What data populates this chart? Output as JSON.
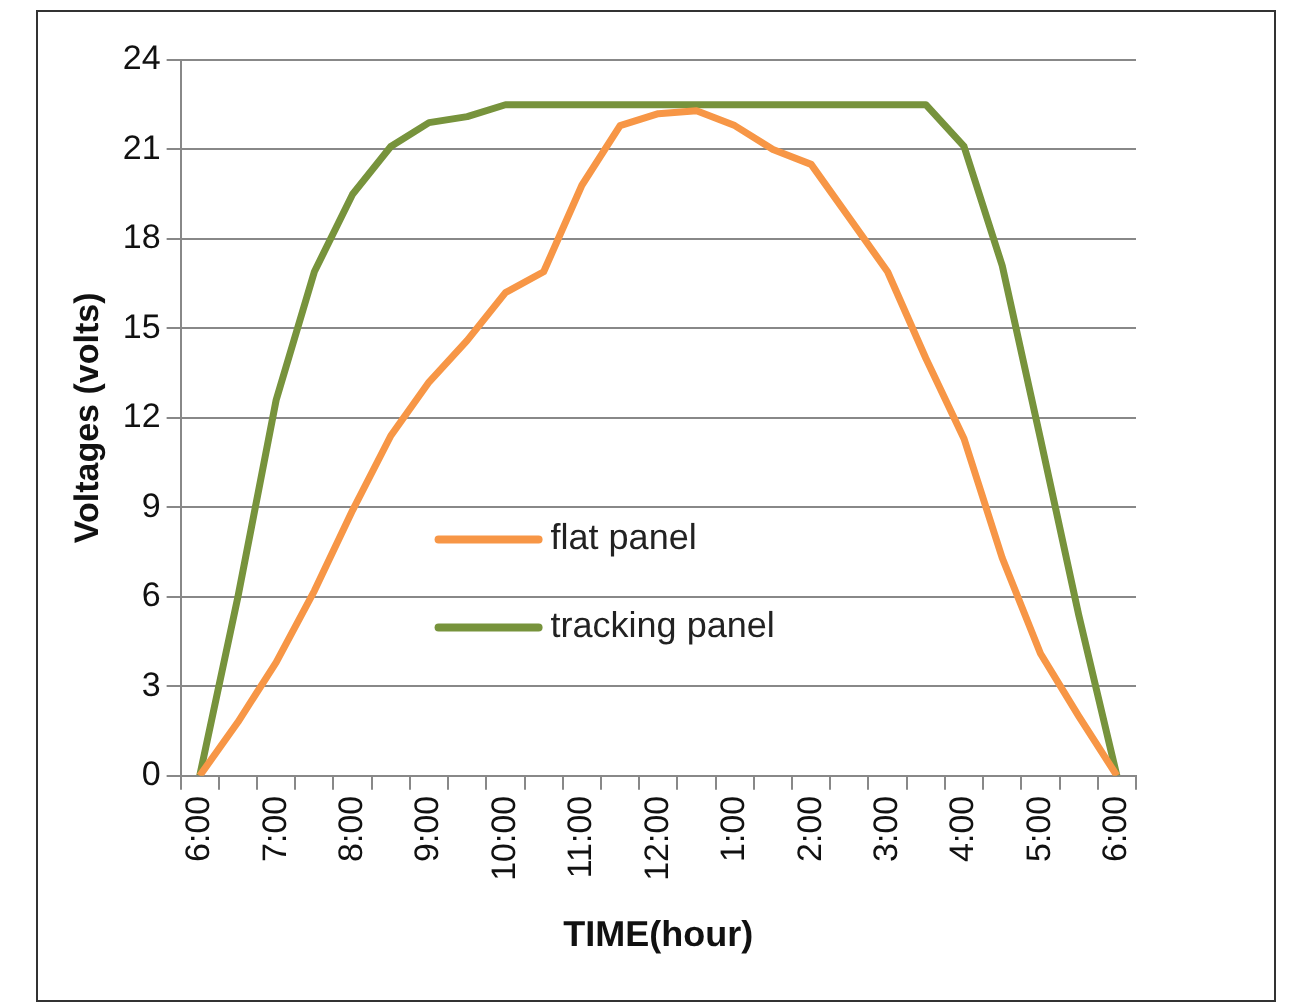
{
  "chart_data": {
    "type": "line",
    "xlabel": "TIME(hour)",
    "ylabel": "Voltages (volts)",
    "categories": [
      "6:00",
      null,
      "7:00",
      null,
      "8:00",
      null,
      "9:00",
      null,
      "10:00",
      null,
      "11:00",
      null,
      "12:00",
      null,
      "1:00",
      null,
      "2:00",
      null,
      "3:00",
      null,
      "4:00",
      null,
      "5:00",
      null,
      "6:00"
    ],
    "series": [
      {
        "name": "flat panel",
        "color": "#f79646",
        "values": [
          0,
          1.8,
          3.8,
          6.2,
          8.9,
          11.4,
          13.2,
          14.6,
          16.2,
          16.9,
          19.8,
          21.8,
          22.2,
          22.3,
          21.8,
          21.0,
          20.5,
          18.7,
          16.9,
          14.0,
          11.3,
          7.3,
          4.1,
          2.0,
          0
        ]
      },
      {
        "name": "tracking panel",
        "color": "#77933c",
        "values": [
          0,
          6.0,
          12.6,
          16.9,
          19.5,
          21.1,
          21.9,
          22.1,
          22.5,
          22.5,
          22.5,
          22.5,
          22.5,
          22.5,
          22.5,
          22.5,
          22.5,
          22.5,
          22.5,
          22.5,
          21.1,
          17.1,
          11.3,
          5.4,
          0
        ]
      }
    ],
    "ylim": [
      0,
      24
    ],
    "yticks": [
      0,
      3,
      6,
      9,
      12,
      15,
      18,
      21,
      24
    ],
    "grid": "y",
    "legend": "center",
    "marker": "none",
    "line_style": "solid"
  }
}
